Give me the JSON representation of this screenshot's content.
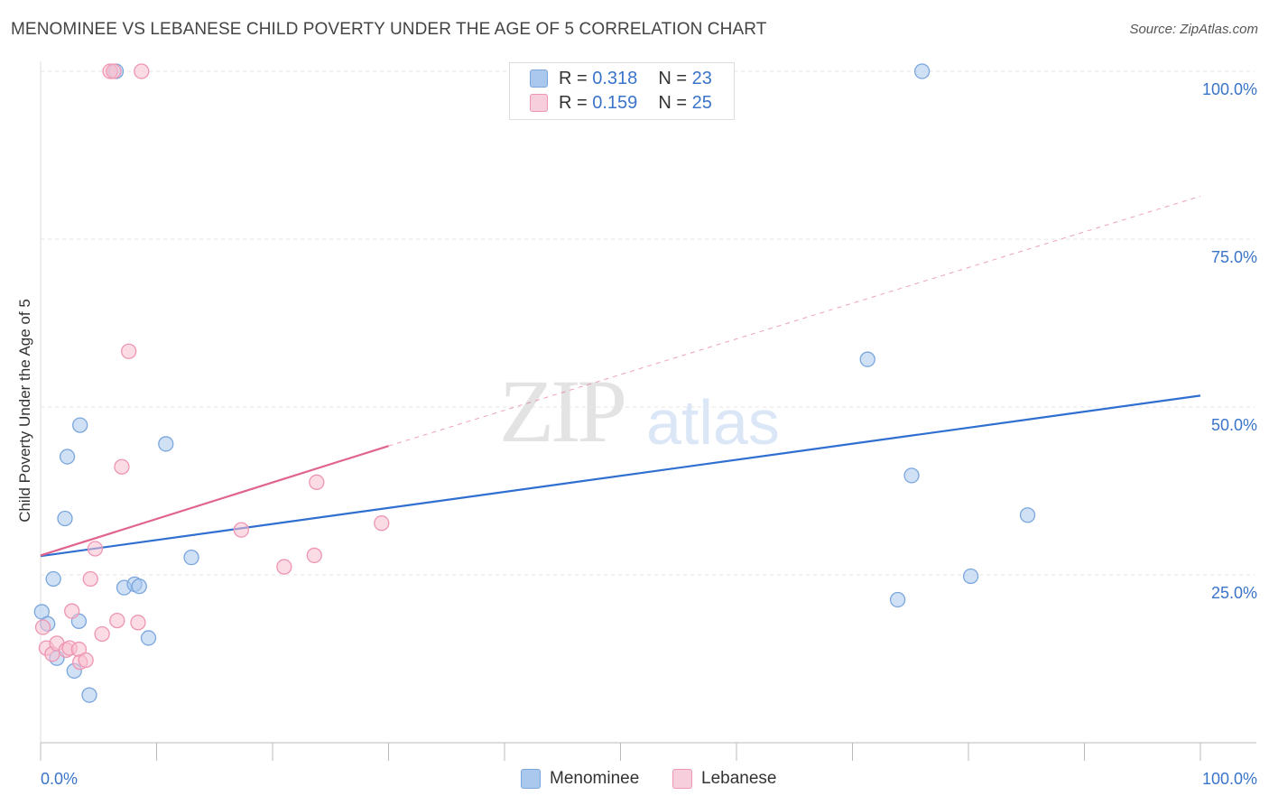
{
  "header": {
    "title": "MENOMINEE VS LEBANESE CHILD POVERTY UNDER THE AGE OF 5 CORRELATION CHART",
    "source": "Source: ZipAtlas.com"
  },
  "watermark": {
    "zip": "ZIP",
    "atlas": "atlas"
  },
  "legend": {
    "rows": [
      {
        "r_label": "R =",
        "r_value": "0.318",
        "n_label": "N =",
        "n_value": "23"
      },
      {
        "r_label": "R =",
        "r_value": "0.159",
        "n_label": "N =",
        "n_value": "25"
      }
    ]
  },
  "bottom_legend": {
    "menominee": "Menominee",
    "lebanese": "Lebanese"
  },
  "colors": {
    "menominee_fill": "#aac8ee",
    "menominee_stroke": "#7aa6dd",
    "menominee_line": "#2f6fd0",
    "lebanese_fill": "#f7bfd0",
    "lebanese_stroke": "#ee95b2",
    "lebanese_line": "#e0648e",
    "tick_label": "#3a74c9",
    "grid": "#e6e6e6"
  },
  "chart_data": {
    "type": "scatter",
    "title": "MENOMINEE VS LEBANESE CHILD POVERTY UNDER THE AGE OF 5 CORRELATION CHART",
    "xlabel": "",
    "ylabel": "Child Poverty Under the Age of 5",
    "xlim": [
      0,
      100
    ],
    "ylim": [
      0,
      100
    ],
    "x_tick_labels": [
      "0.0%",
      "100.0%"
    ],
    "y_ticks": [
      25,
      50,
      75,
      100
    ],
    "y_tick_labels": [
      "25.0%",
      "50.0%",
      "75.0%",
      "100.0%"
    ],
    "grid": true,
    "series": [
      {
        "name": "Menominee",
        "R": 0.318,
        "N": 23,
        "points": [
          [
            0.1,
            19.5
          ],
          [
            0.6,
            17.7
          ],
          [
            1.1,
            24.4
          ],
          [
            1.4,
            12.6
          ],
          [
            2.1,
            33.4
          ],
          [
            2.3,
            42.6
          ],
          [
            2.9,
            10.7
          ],
          [
            3.3,
            18.1
          ],
          [
            3.4,
            47.3
          ],
          [
            4.2,
            7.1
          ],
          [
            6.5,
            100.0
          ],
          [
            7.2,
            23.1
          ],
          [
            8.1,
            23.6
          ],
          [
            8.5,
            23.3
          ],
          [
            9.3,
            15.6
          ],
          [
            10.8,
            44.5
          ],
          [
            13.0,
            27.6
          ],
          [
            71.3,
            57.1
          ],
          [
            73.9,
            21.3
          ],
          [
            75.1,
            39.8
          ],
          [
            76.0,
            100.0
          ],
          [
            80.2,
            24.8
          ],
          [
            85.1,
            33.9
          ]
        ],
        "trend": {
          "x": [
            0,
            100
          ],
          "y": [
            27.8,
            51.7
          ],
          "style": "solid"
        }
      },
      {
        "name": "Lebanese",
        "R": 0.159,
        "N": 25,
        "points": [
          [
            0.2,
            17.2
          ],
          [
            0.5,
            14.1
          ],
          [
            1.0,
            13.2
          ],
          [
            1.4,
            14.8
          ],
          [
            2.2,
            13.8
          ],
          [
            2.5,
            14.1
          ],
          [
            2.7,
            19.6
          ],
          [
            3.3,
            13.9
          ],
          [
            3.4,
            12.0
          ],
          [
            3.9,
            12.3
          ],
          [
            4.3,
            24.4
          ],
          [
            4.7,
            28.9
          ],
          [
            5.3,
            16.2
          ],
          [
            6.0,
            100.0
          ],
          [
            6.6,
            18.2
          ],
          [
            7.0,
            41.1
          ],
          [
            7.6,
            58.3
          ],
          [
            8.4,
            17.9
          ],
          [
            8.7,
            100.0
          ],
          [
            17.3,
            31.7
          ],
          [
            21.0,
            26.2
          ],
          [
            23.6,
            27.9
          ],
          [
            23.8,
            38.8
          ],
          [
            29.4,
            32.7
          ],
          [
            6.3,
            100.0
          ]
        ],
        "trend": {
          "x": [
            0,
            30,
            100
          ],
          "y": [
            27.9,
            44.2,
            81.4
          ],
          "style": "solid-then-dashed"
        }
      }
    ]
  }
}
